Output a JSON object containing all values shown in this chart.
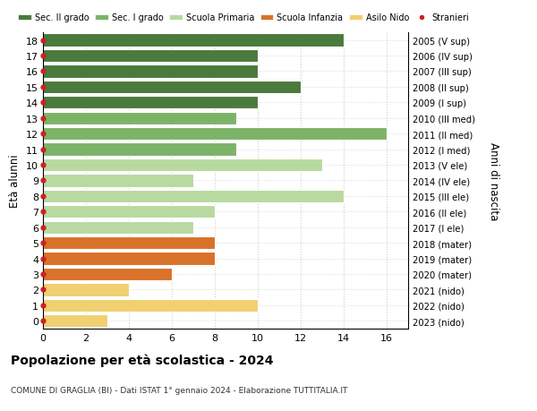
{
  "ages": [
    18,
    17,
    16,
    15,
    14,
    13,
    12,
    11,
    10,
    9,
    8,
    7,
    6,
    5,
    4,
    3,
    2,
    1,
    0
  ],
  "right_labels": [
    "2005 (V sup)",
    "2006 (IV sup)",
    "2007 (III sup)",
    "2008 (II sup)",
    "2009 (I sup)",
    "2010 (III med)",
    "2011 (II med)",
    "2012 (I med)",
    "2013 (V ele)",
    "2014 (IV ele)",
    "2015 (III ele)",
    "2016 (II ele)",
    "2017 (I ele)",
    "2018 (mater)",
    "2019 (mater)",
    "2020 (mater)",
    "2021 (nido)",
    "2022 (nido)",
    "2023 (nido)"
  ],
  "values": [
    14,
    10,
    10,
    12,
    10,
    9,
    16,
    9,
    13,
    7,
    14,
    8,
    7,
    8,
    8,
    6,
    4,
    10,
    3
  ],
  "colors": [
    "#4a7a3d",
    "#4a7a3d",
    "#4a7a3d",
    "#4a7a3d",
    "#4a7a3d",
    "#7db368",
    "#7db368",
    "#7db368",
    "#b8d9a0",
    "#b8d9a0",
    "#b8d9a0",
    "#b8d9a0",
    "#b8d9a0",
    "#d9722a",
    "#d9722a",
    "#d9722a",
    "#f0d070",
    "#f0d070",
    "#f0d070"
  ],
  "legend_labels": [
    "Sec. II grado",
    "Sec. I grado",
    "Scuola Primaria",
    "Scuola Infanzia",
    "Asilo Nido",
    "Stranieri"
  ],
  "legend_colors": [
    "#4a7a3d",
    "#7db368",
    "#b8d9a0",
    "#d9722a",
    "#f0d070",
    "#cc2222"
  ],
  "ylabel": "Età alunni",
  "right_ylabel": "Anni di nascita",
  "title": "Popolazione per età scolastica - 2024",
  "subtitle": "COMUNE DI GRAGLIA (BI) - Dati ISTAT 1° gennaio 2024 - Elaborazione TUTTITALIA.IT",
  "xlim": [
    0,
    17
  ],
  "ylim": [
    -0.5,
    18.5
  ],
  "xticks": [
    0,
    2,
    4,
    6,
    8,
    10,
    12,
    14,
    16
  ],
  "stranieri_dot_color": "#cc2222",
  "bar_edge_color": "white",
  "bg_color": "#ffffff",
  "grid_color": "#cccccc"
}
